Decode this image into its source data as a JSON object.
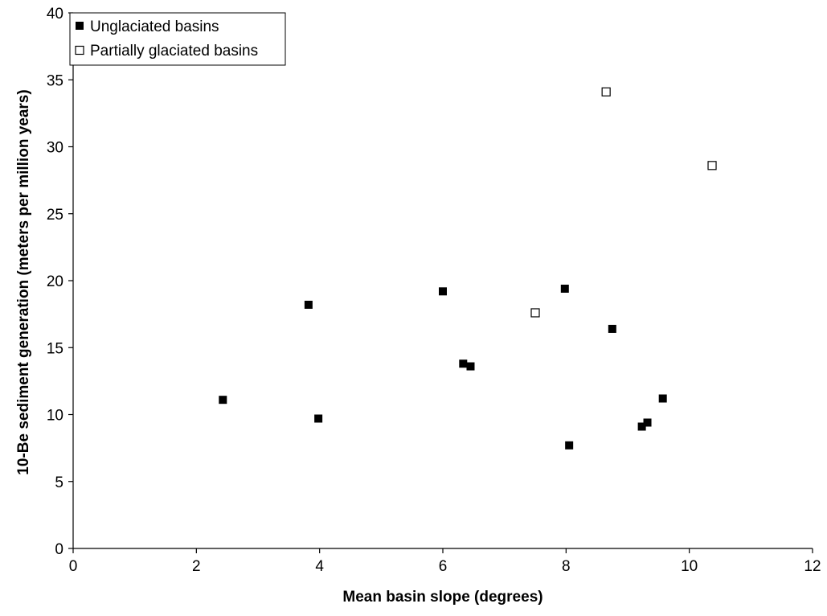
{
  "chart_data": {
    "type": "scatter",
    "title": "",
    "xlabel": "Mean basin slope (degrees)",
    "ylabel": "10-Be sediment generation (meters per million years)",
    "xlim": [
      0,
      12
    ],
    "ylim": [
      0,
      40
    ],
    "x_ticks": [
      "0",
      "2",
      "4",
      "6",
      "8",
      "10",
      "12"
    ],
    "y_ticks": [
      "0",
      "5",
      "10",
      "15",
      "20",
      "25",
      "30",
      "35",
      "40"
    ],
    "grid": false,
    "legend_position": "top-left",
    "series": [
      {
        "name": "Unglaciated basins",
        "marker": "filled-square",
        "color": "#000000",
        "points": [
          {
            "x": 2.43,
            "y": 11.1
          },
          {
            "x": 3.82,
            "y": 18.2
          },
          {
            "x": 3.98,
            "y": 9.7
          },
          {
            "x": 6.0,
            "y": 19.2
          },
          {
            "x": 6.33,
            "y": 13.8
          },
          {
            "x": 6.45,
            "y": 13.6
          },
          {
            "x": 7.98,
            "y": 19.4
          },
          {
            "x": 8.05,
            "y": 7.7
          },
          {
            "x": 8.75,
            "y": 16.4
          },
          {
            "x": 9.23,
            "y": 9.1
          },
          {
            "x": 9.32,
            "y": 9.4
          },
          {
            "x": 9.57,
            "y": 11.2
          }
        ]
      },
      {
        "name": "Partially glaciated basins",
        "marker": "open-square",
        "color": "#000000",
        "points": [
          {
            "x": 7.5,
            "y": 17.6
          },
          {
            "x": 8.65,
            "y": 34.1
          },
          {
            "x": 10.37,
            "y": 28.6
          }
        ]
      }
    ]
  }
}
